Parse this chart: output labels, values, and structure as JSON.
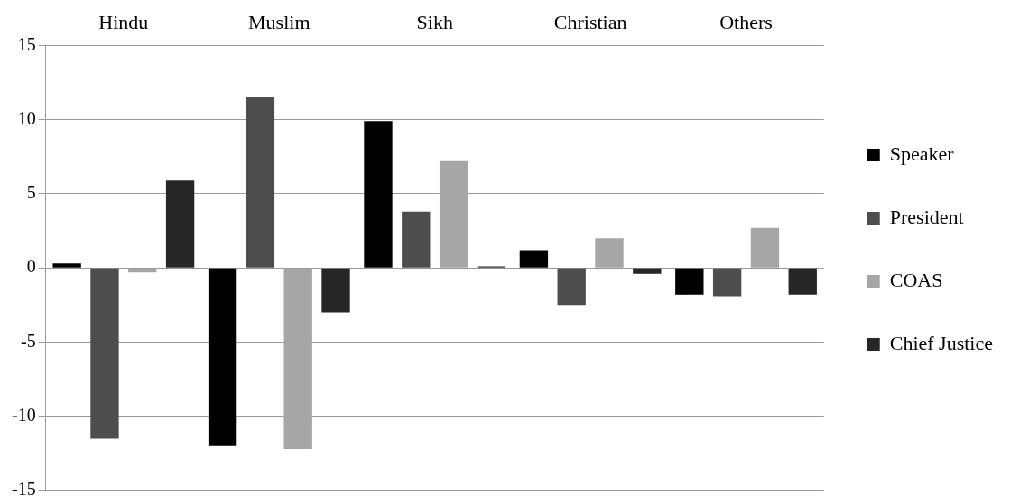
{
  "chart_data": {
    "type": "bar",
    "categories": [
      "Hindu",
      "Muslim",
      "Sikh",
      "Christian",
      "Others"
    ],
    "series": [
      {
        "name": "Speaker",
        "color": "#000000",
        "values": [
          0.3,
          -12.0,
          9.9,
          1.2,
          -1.8
        ]
      },
      {
        "name": "President",
        "color": "#4d4d4d",
        "values": [
          -11.5,
          11.5,
          3.8,
          -2.5,
          -1.9
        ]
      },
      {
        "name": "COAS",
        "color": "#a6a6a6",
        "values": [
          -0.3,
          -12.2,
          7.2,
          2.0,
          2.7
        ]
      },
      {
        "name": "Chief Justice",
        "color": "#262626",
        "values": [
          5.9,
          -3.0,
          0.1,
          -0.4,
          -1.8
        ]
      }
    ],
    "ylim": [
      -15,
      15
    ],
    "yticks": [
      -15,
      -10,
      -5,
      0,
      5,
      10,
      15
    ],
    "grid": "y",
    "legend": "right"
  }
}
